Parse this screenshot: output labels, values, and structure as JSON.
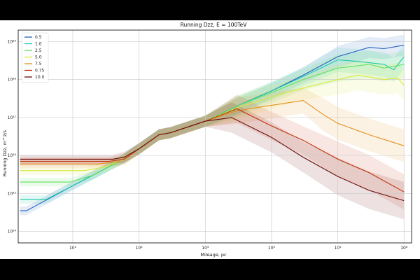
{
  "chart_data": {
    "type": "line",
    "title": "Running Dzz, E = 100TeV",
    "xlabel": "Mileage, pc",
    "ylabel": "Running Dzz, m^2/s",
    "x_scale": "log",
    "y_scale": "log",
    "xlim": [
      1.5,
      1300000.0
    ],
    "ylim": [
      5e+23,
      2e+29
    ],
    "x_ticks": [
      {
        "v": 10,
        "label": "10¹"
      },
      {
        "v": 100,
        "label": "10²"
      },
      {
        "v": 1000,
        "label": "10³"
      },
      {
        "v": 10000,
        "label": "10⁴"
      },
      {
        "v": 100000,
        "label": "10⁵"
      },
      {
        "v": 1000000,
        "label": "10⁶"
      }
    ],
    "y_ticks": [
      {
        "v": 1e+24,
        "label": "10²⁴"
      },
      {
        "v": 1e+25,
        "label": "10²⁵"
      },
      {
        "v": 1e+26,
        "label": "10²⁶"
      },
      {
        "v": 1e+27,
        "label": "10²⁷"
      },
      {
        "v": 1e+28,
        "label": "10²⁸"
      },
      {
        "v": 1e+29,
        "label": "10²⁹"
      }
    ],
    "grid": true,
    "legend_position": "top-left",
    "series": [
      {
        "name": "0.5",
        "color": "#1f5fbf",
        "points": [
          [
            1.6,
            3.5e+24
          ],
          [
            2,
            3.5e+24
          ],
          [
            10,
            1.6e+25
          ],
          [
            50,
            7e+25
          ],
          [
            100,
            1.5e+26
          ],
          [
            200,
            3.5e+26
          ],
          [
            300,
            4e+26
          ],
          [
            1000,
            8e+26
          ],
          [
            3000,
            2e+27
          ],
          [
            10000,
            5e+27
          ],
          [
            30000,
            1.3e+28
          ],
          [
            100000,
            4e+28
          ],
          [
            300000,
            7e+28
          ],
          [
            500000,
            6.5e+28
          ],
          [
            1000000,
            8e+28
          ]
        ]
      },
      {
        "name": "1.0",
        "color": "#17c6a8",
        "points": [
          [
            1.6,
            7e+24
          ],
          [
            4,
            7e+24
          ],
          [
            10,
            1.6e+25
          ],
          [
            50,
            7e+25
          ],
          [
            100,
            1.5e+26
          ],
          [
            200,
            3.5e+26
          ],
          [
            300,
            4e+26
          ],
          [
            1000,
            8e+26
          ],
          [
            3000,
            2e+27
          ],
          [
            10000,
            5e+27
          ],
          [
            30000,
            1.2e+28
          ],
          [
            100000,
            3.3e+28
          ],
          [
            200000,
            3e+28
          ],
          [
            500000,
            2.5e+28
          ],
          [
            700000,
            1.8e+28
          ],
          [
            1000000,
            4e+28
          ]
        ]
      },
      {
        "name": "2.5",
        "color": "#5ee25e",
        "points": [
          [
            1.6,
            2e+25
          ],
          [
            9,
            2e+25
          ],
          [
            20,
            3e+25
          ],
          [
            50,
            7e+25
          ],
          [
            100,
            1.5e+26
          ],
          [
            200,
            3.5e+26
          ],
          [
            300,
            4e+26
          ],
          [
            1000,
            8e+26
          ],
          [
            3000,
            2e+27
          ],
          [
            10000,
            4.5e+27
          ],
          [
            30000,
            1e+28
          ],
          [
            100000,
            2e+28
          ],
          [
            300000,
            2.5e+28
          ],
          [
            500000,
            2e+28
          ],
          [
            1000000,
            2.5e+28
          ]
        ]
      },
      {
        "name": "5.0",
        "color": "#d6e83c",
        "points": [
          [
            1.6,
            4e+25
          ],
          [
            15,
            4e+25
          ],
          [
            30,
            5e+25
          ],
          [
            60,
            8e+25
          ],
          [
            100,
            1.5e+26
          ],
          [
            200,
            3.5e+26
          ],
          [
            300,
            4e+26
          ],
          [
            1000,
            8e+26
          ],
          [
            3000,
            1.8e+27
          ],
          [
            10000,
            3.5e+27
          ],
          [
            30000,
            6e+27
          ],
          [
            100000,
            1e+28
          ],
          [
            200000,
            1.3e+28
          ],
          [
            500000,
            1e+28
          ],
          [
            800000,
            1.1e+28
          ],
          [
            1000000,
            7e+27
          ]
        ]
      },
      {
        "name": "7.5",
        "color": "#e3901e",
        "points": [
          [
            1.6,
            6e+25
          ],
          [
            25,
            6e+25
          ],
          [
            50,
            7e+25
          ],
          [
            100,
            1.5e+26
          ],
          [
            200,
            3.5e+26
          ],
          [
            300,
            4e+26
          ],
          [
            1000,
            8e+26
          ],
          [
            3000,
            1.5e+27
          ],
          [
            10000,
            2.1e+27
          ],
          [
            30000,
            2.8e+27
          ],
          [
            60000,
            1.2e+27
          ],
          [
            100000,
            7e+26
          ],
          [
            300000,
            3.5e+26
          ],
          [
            1000000,
            1.8e+26
          ]
        ]
      },
      {
        "name": "0.75",
        "color": "#c0300c",
        "points": [
          [
            1.6,
            7e+25
          ],
          [
            35,
            7e+25
          ],
          [
            60,
            8e+25
          ],
          [
            100,
            1.5e+26
          ],
          [
            200,
            3.5e+26
          ],
          [
            300,
            4e+26
          ],
          [
            1000,
            8e+26
          ],
          [
            3000,
            1.7e+27
          ],
          [
            10000,
            6e+26
          ],
          [
            30000,
            2.5e+26
          ],
          [
            100000,
            8e+25
          ],
          [
            300000,
            3.5e+25
          ],
          [
            1000000,
            1.1e+25
          ]
        ]
      },
      {
        "name": "10.0",
        "color": "#6e0a08",
        "points": [
          [
            1.6,
            8e+25
          ],
          [
            40,
            8e+25
          ],
          [
            60,
            9e+25
          ],
          [
            100,
            1.5e+26
          ],
          [
            200,
            3.5e+26
          ],
          [
            300,
            4e+26
          ],
          [
            1000,
            8e+26
          ],
          [
            2500,
            1e+27
          ],
          [
            10000,
            3e+26
          ],
          [
            30000,
            9e+25
          ],
          [
            100000,
            2.8e+25
          ],
          [
            300000,
            1.2e+25
          ],
          [
            1000000,
            6.5e+24
          ]
        ]
      }
    ]
  }
}
